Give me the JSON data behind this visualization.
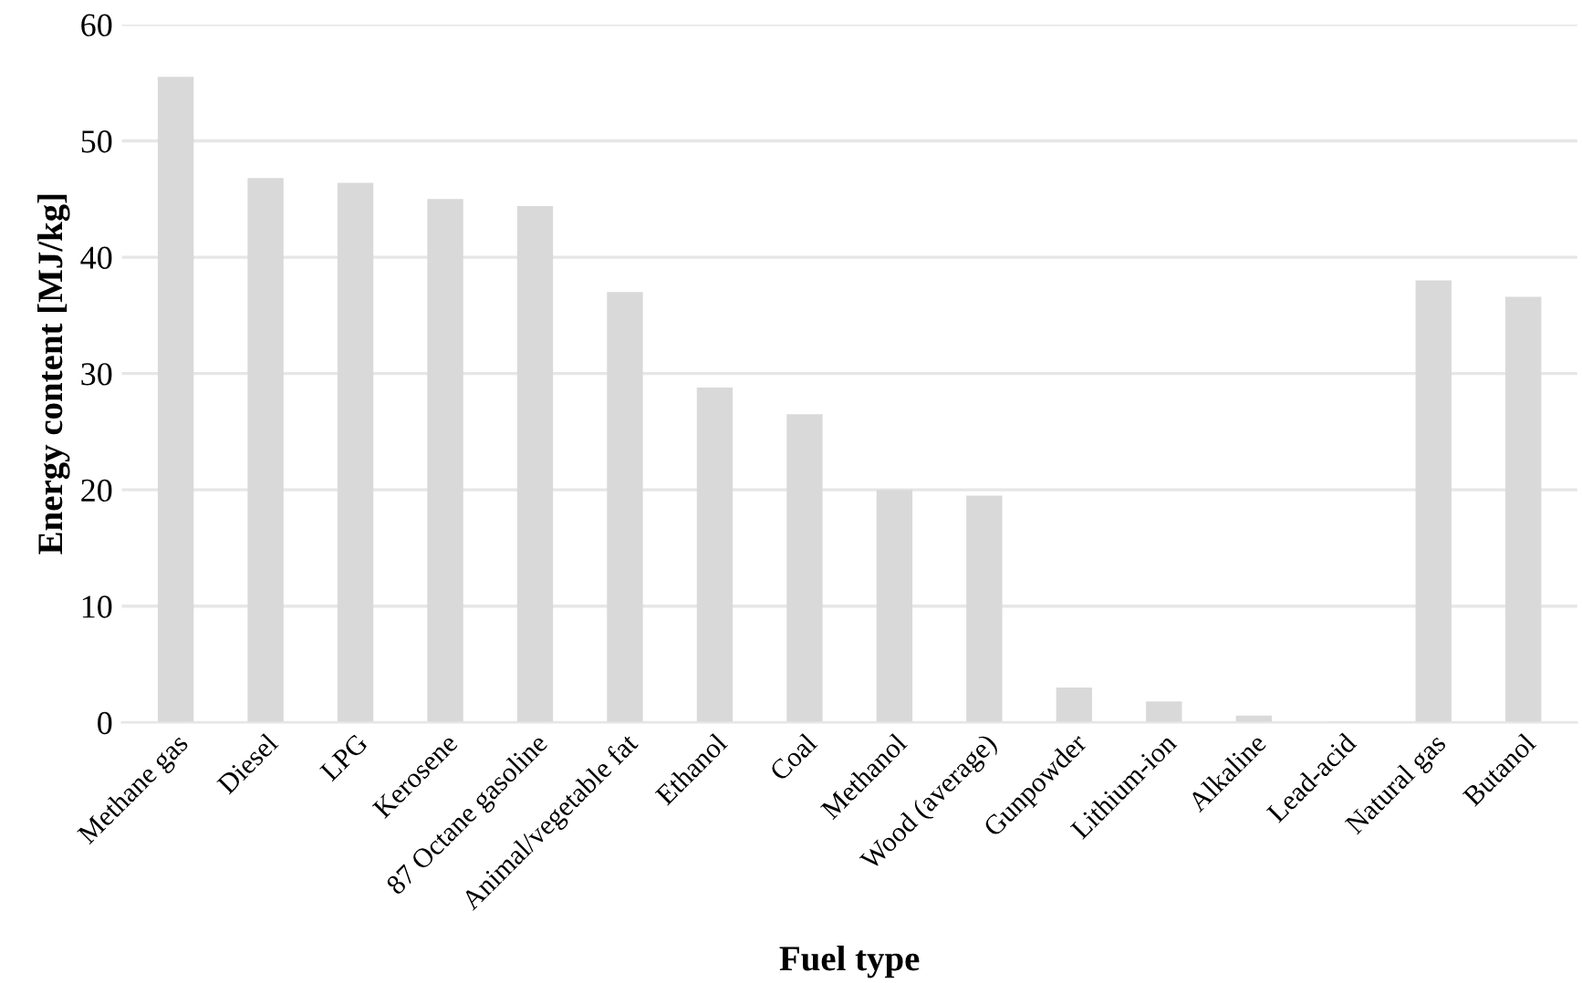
{
  "chart_data": {
    "type": "bar",
    "xlabel": "Fuel type",
    "ylabel": "Energy content [MJ/kg]",
    "categories": [
      "Methane gas",
      "Diesel",
      "LPG",
      "Kerosene",
      "87 Octane gasoline",
      "Animal/vegetable fat",
      "Ethanol",
      "Coal",
      "Methanol",
      "Wood (average)",
      "Gunpowder",
      "Lithium-ion",
      "Alkaline",
      "Lead-acid",
      "Natural gas",
      "Butanol"
    ],
    "values": [
      55.5,
      46.8,
      46.4,
      45.0,
      44.4,
      37.0,
      28.8,
      26.5,
      20.0,
      19.5,
      3.0,
      1.8,
      0.6,
      0.1,
      38.0,
      36.6
    ],
    "color": "#d9d9d9",
    "ylim": [
      0,
      60
    ],
    "yticks": [
      0,
      10,
      20,
      30,
      40,
      50,
      60
    ],
    "grid": "y"
  }
}
